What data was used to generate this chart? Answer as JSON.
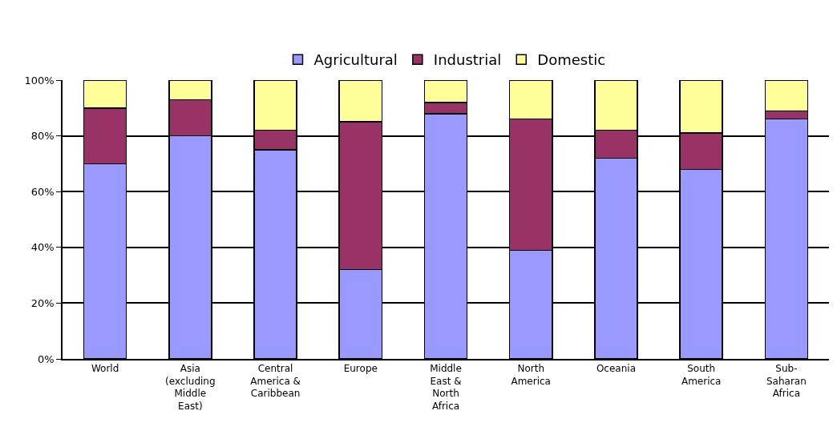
{
  "chart_data": {
    "type": "bar",
    "stacked": true,
    "categories": [
      "World",
      "Asia\n(excluding\nMiddle\nEast)",
      "Central\nAmerica &\nCaribbean",
      "Europe",
      "Middle\nEast &\nNorth\nAfrica",
      "North\nAmerica",
      "Oceania",
      "South\nAmerica",
      "Sub-\nSaharan\nAfrica"
    ],
    "series": [
      {
        "name": "Agricultural",
        "color": "#9999ff",
        "values": [
          70,
          80,
          75,
          32,
          88,
          39,
          72,
          68,
          86
        ]
      },
      {
        "name": "Industrial",
        "color": "#993366",
        "values": [
          20,
          13,
          7,
          53,
          4,
          47,
          10,
          13,
          3
        ]
      },
      {
        "name": "Domestic",
        "color": "#ffff99",
        "values": [
          10,
          7,
          18,
          15,
          8,
          14,
          18,
          19,
          11
        ]
      }
    ],
    "ylim": [
      0,
      100
    ],
    "yticks": [
      {
        "value": 0,
        "label": "0%"
      },
      {
        "value": 20,
        "label": "20%"
      },
      {
        "value": 40,
        "label": "40%"
      },
      {
        "value": 60,
        "label": "60%"
      },
      {
        "value": 80,
        "label": "80%"
      },
      {
        "value": 100,
        "label": "100%"
      }
    ],
    "grid": "y",
    "legend": "top"
  }
}
